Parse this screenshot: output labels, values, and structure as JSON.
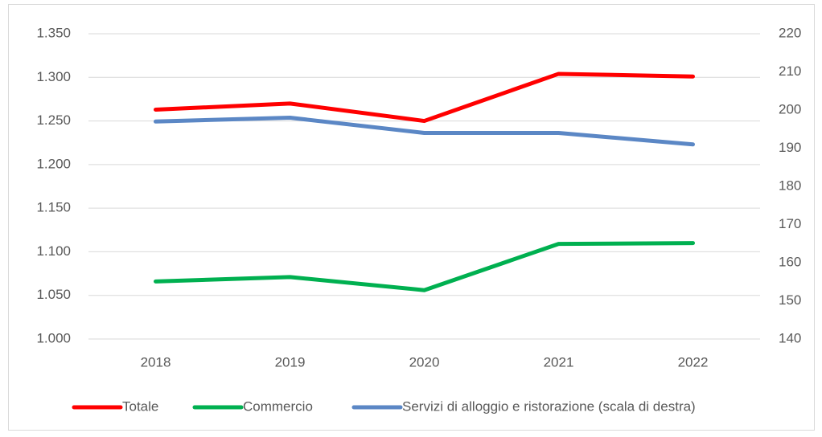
{
  "chart_data": {
    "type": "line",
    "categories": [
      "2018",
      "2019",
      "2020",
      "2021",
      "2022"
    ],
    "series": [
      {
        "name": "Totale",
        "color": "#ff0000",
        "values": [
          1263,
          1270,
          1250,
          1304,
          1301
        ]
      },
      {
        "name": "Commercio",
        "color": "#00b050",
        "values": [
          1066,
          1071,
          1056,
          1109,
          1110
        ]
      },
      {
        "name": "Servizi di alloggio e ristorazione (scala di destra)",
        "color": "#5b87c5",
        "values": [
          197,
          198,
          194,
          194,
          191
        ],
        "axis": "y2"
      }
    ],
    "ylim": [
      1000,
      1350
    ],
    "yticks": [
      {
        "value": 1000,
        "label": "1.000"
      },
      {
        "value": 1050,
        "label": "1.050"
      },
      {
        "value": 1100,
        "label": "1.100"
      },
      {
        "value": 1150,
        "label": "1.150"
      },
      {
        "value": 1200,
        "label": "1.200"
      },
      {
        "value": 1250,
        "label": "1.250"
      },
      {
        "value": 1300,
        "label": "1.300"
      },
      {
        "value": 1350,
        "label": "1.350"
      }
    ],
    "y2lim": [
      140,
      220
    ],
    "y2ticks": [
      140,
      150,
      160,
      170,
      180,
      190,
      200,
      210,
      220
    ],
    "grid": true,
    "legend": "bottom"
  }
}
